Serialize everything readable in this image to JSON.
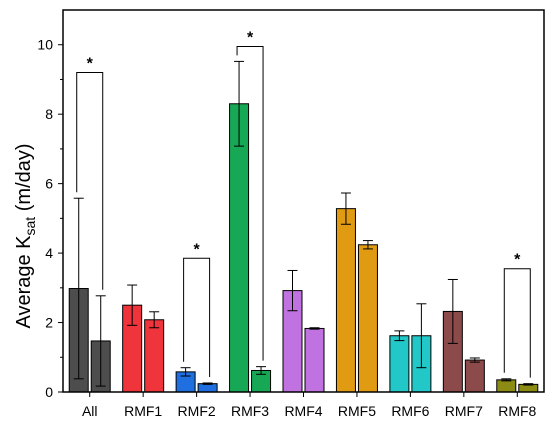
{
  "chart_data": {
    "type": "bar",
    "title": "",
    "xlabel": "",
    "ylabel": {
      "main": "Average K",
      "subscript": "sat",
      "unit": " (m/day)"
    },
    "ylim": [
      0,
      11
    ],
    "yticks": [
      0,
      2,
      4,
      6,
      8,
      10
    ],
    "grid": false,
    "legend": "none",
    "categories": [
      "All",
      "RMF1",
      "RMF2",
      "RMF3",
      "RMF4",
      "RMF5",
      "RMF6",
      "RMF7",
      "RMF8"
    ],
    "colors": [
      "#4d4d4d",
      "#f0343c",
      "#1f6fe0",
      "#17a855",
      "#bf72e0",
      "#e09b12",
      "#22c8c8",
      "#8c4a4a",
      "#8c8c14"
    ],
    "series": [
      {
        "values": [
          2.98,
          2.5,
          0.58,
          8.3,
          2.92,
          5.28,
          1.62,
          2.32,
          0.35
        ],
        "errors": [
          2.6,
          0.58,
          0.12,
          1.22,
          0.58,
          0.45,
          0.14,
          0.92,
          0.03
        ]
      },
      {
        "values": [
          1.47,
          2.08,
          0.24,
          0.62,
          1.83,
          4.24,
          1.62,
          0.92,
          0.22
        ],
        "errors": [
          1.3,
          0.23,
          0.02,
          0.11,
          0.02,
          0.12,
          0.92,
          0.06,
          0.02
        ]
      }
    ],
    "significance": [
      {
        "category": "All",
        "label": "*",
        "bracket_top": 9.2
      },
      {
        "category": "RMF2",
        "label": "*",
        "bracket_top": 3.85
      },
      {
        "category": "RMF3",
        "label": "*",
        "bracket_top": 9.95
      },
      {
        "category": "RMF8",
        "label": "*",
        "bracket_top": 3.55
      }
    ]
  }
}
